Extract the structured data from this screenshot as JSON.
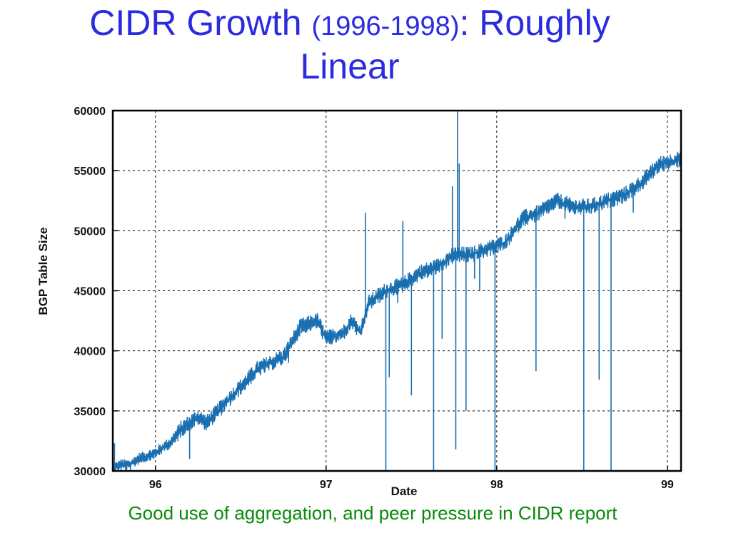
{
  "title": {
    "part1": "CIDR Growth ",
    "part2": "(1996-1998)",
    "part3": ": Roughly",
    "line2": "Linear"
  },
  "caption": "Good use of aggregation, and peer pressure in CIDR report",
  "colors": {
    "title": "#2b2be0",
    "caption": "#0a8a0a",
    "series": "#1a6fb0"
  },
  "chart_data": {
    "type": "line",
    "title": "",
    "xlabel": "Date",
    "ylabel": "BGP Table Size",
    "ylim": [
      30000,
      60000
    ],
    "xlim": [
      95.75,
      99.08
    ],
    "yticks": [
      "30000",
      "35000",
      "40000",
      "45000",
      "50000",
      "55000",
      "60000"
    ],
    "xticks": [
      {
        "value": 96,
        "label": "96"
      },
      {
        "value": 97,
        "label": "97"
      },
      {
        "value": 98,
        "label": "98"
      },
      {
        "value": 99,
        "label": "99"
      }
    ],
    "grid": true,
    "series": [
      {
        "name": "",
        "x": [
          95.75,
          95.8,
          95.85,
          95.9,
          96.0,
          96.1,
          96.15,
          96.25,
          96.3,
          96.4,
          96.5,
          96.6,
          96.75,
          96.85,
          96.95,
          97.0,
          97.1,
          97.15,
          97.2,
          97.25,
          97.35,
          97.45,
          97.55,
          97.65,
          97.75,
          97.85,
          97.95,
          98.05,
          98.15,
          98.25,
          98.35,
          98.45,
          98.55,
          98.65,
          98.75,
          98.85,
          98.95,
          99.08
        ],
        "values": [
          30200,
          30500,
          30500,
          31000,
          31500,
          32500,
          33500,
          34500,
          34000,
          35500,
          37000,
          38500,
          39500,
          42000,
          42500,
          41000,
          41500,
          42500,
          41500,
          44000,
          45000,
          45500,
          46500,
          47000,
          48000,
          48000,
          48500,
          49000,
          51000,
          51500,
          52500,
          52000,
          52000,
          52500,
          53000,
          54000,
          55500,
          56000
        ]
      }
    ],
    "spikes": [
      {
        "x": 95.76,
        "y": 32300
      },
      {
        "x": 96.2,
        "y": 31000
      },
      {
        "x": 96.78,
        "y": 39000
      },
      {
        "x": 97.35,
        "y": 30000
      },
      {
        "x": 97.37,
        "y": 37800
      },
      {
        "x": 97.42,
        "y": 44000
      },
      {
        "x": 97.5,
        "y": 36300
      },
      {
        "x": 97.63,
        "y": 30000
      },
      {
        "x": 97.68,
        "y": 41000
      },
      {
        "x": 97.74,
        "y": 53700
      },
      {
        "x": 97.76,
        "y": 31800
      },
      {
        "x": 97.77,
        "y": 60000
      },
      {
        "x": 97.78,
        "y": 55600
      },
      {
        "x": 97.82,
        "y": 35000
      },
      {
        "x": 97.87,
        "y": 46000
      },
      {
        "x": 97.9,
        "y": 45000
      },
      {
        "x": 97.99,
        "y": 30000
      },
      {
        "x": 98.23,
        "y": 38300
      },
      {
        "x": 98.51,
        "y": 30000
      },
      {
        "x": 98.6,
        "y": 37600
      },
      {
        "x": 98.67,
        "y": 30000
      },
      {
        "x": 98.4,
        "y": 51000
      },
      {
        "x": 98.8,
        "y": 51500
      },
      {
        "x": 97.23,
        "y": 51500
      },
      {
        "x": 97.45,
        "y": 50800
      }
    ]
  }
}
